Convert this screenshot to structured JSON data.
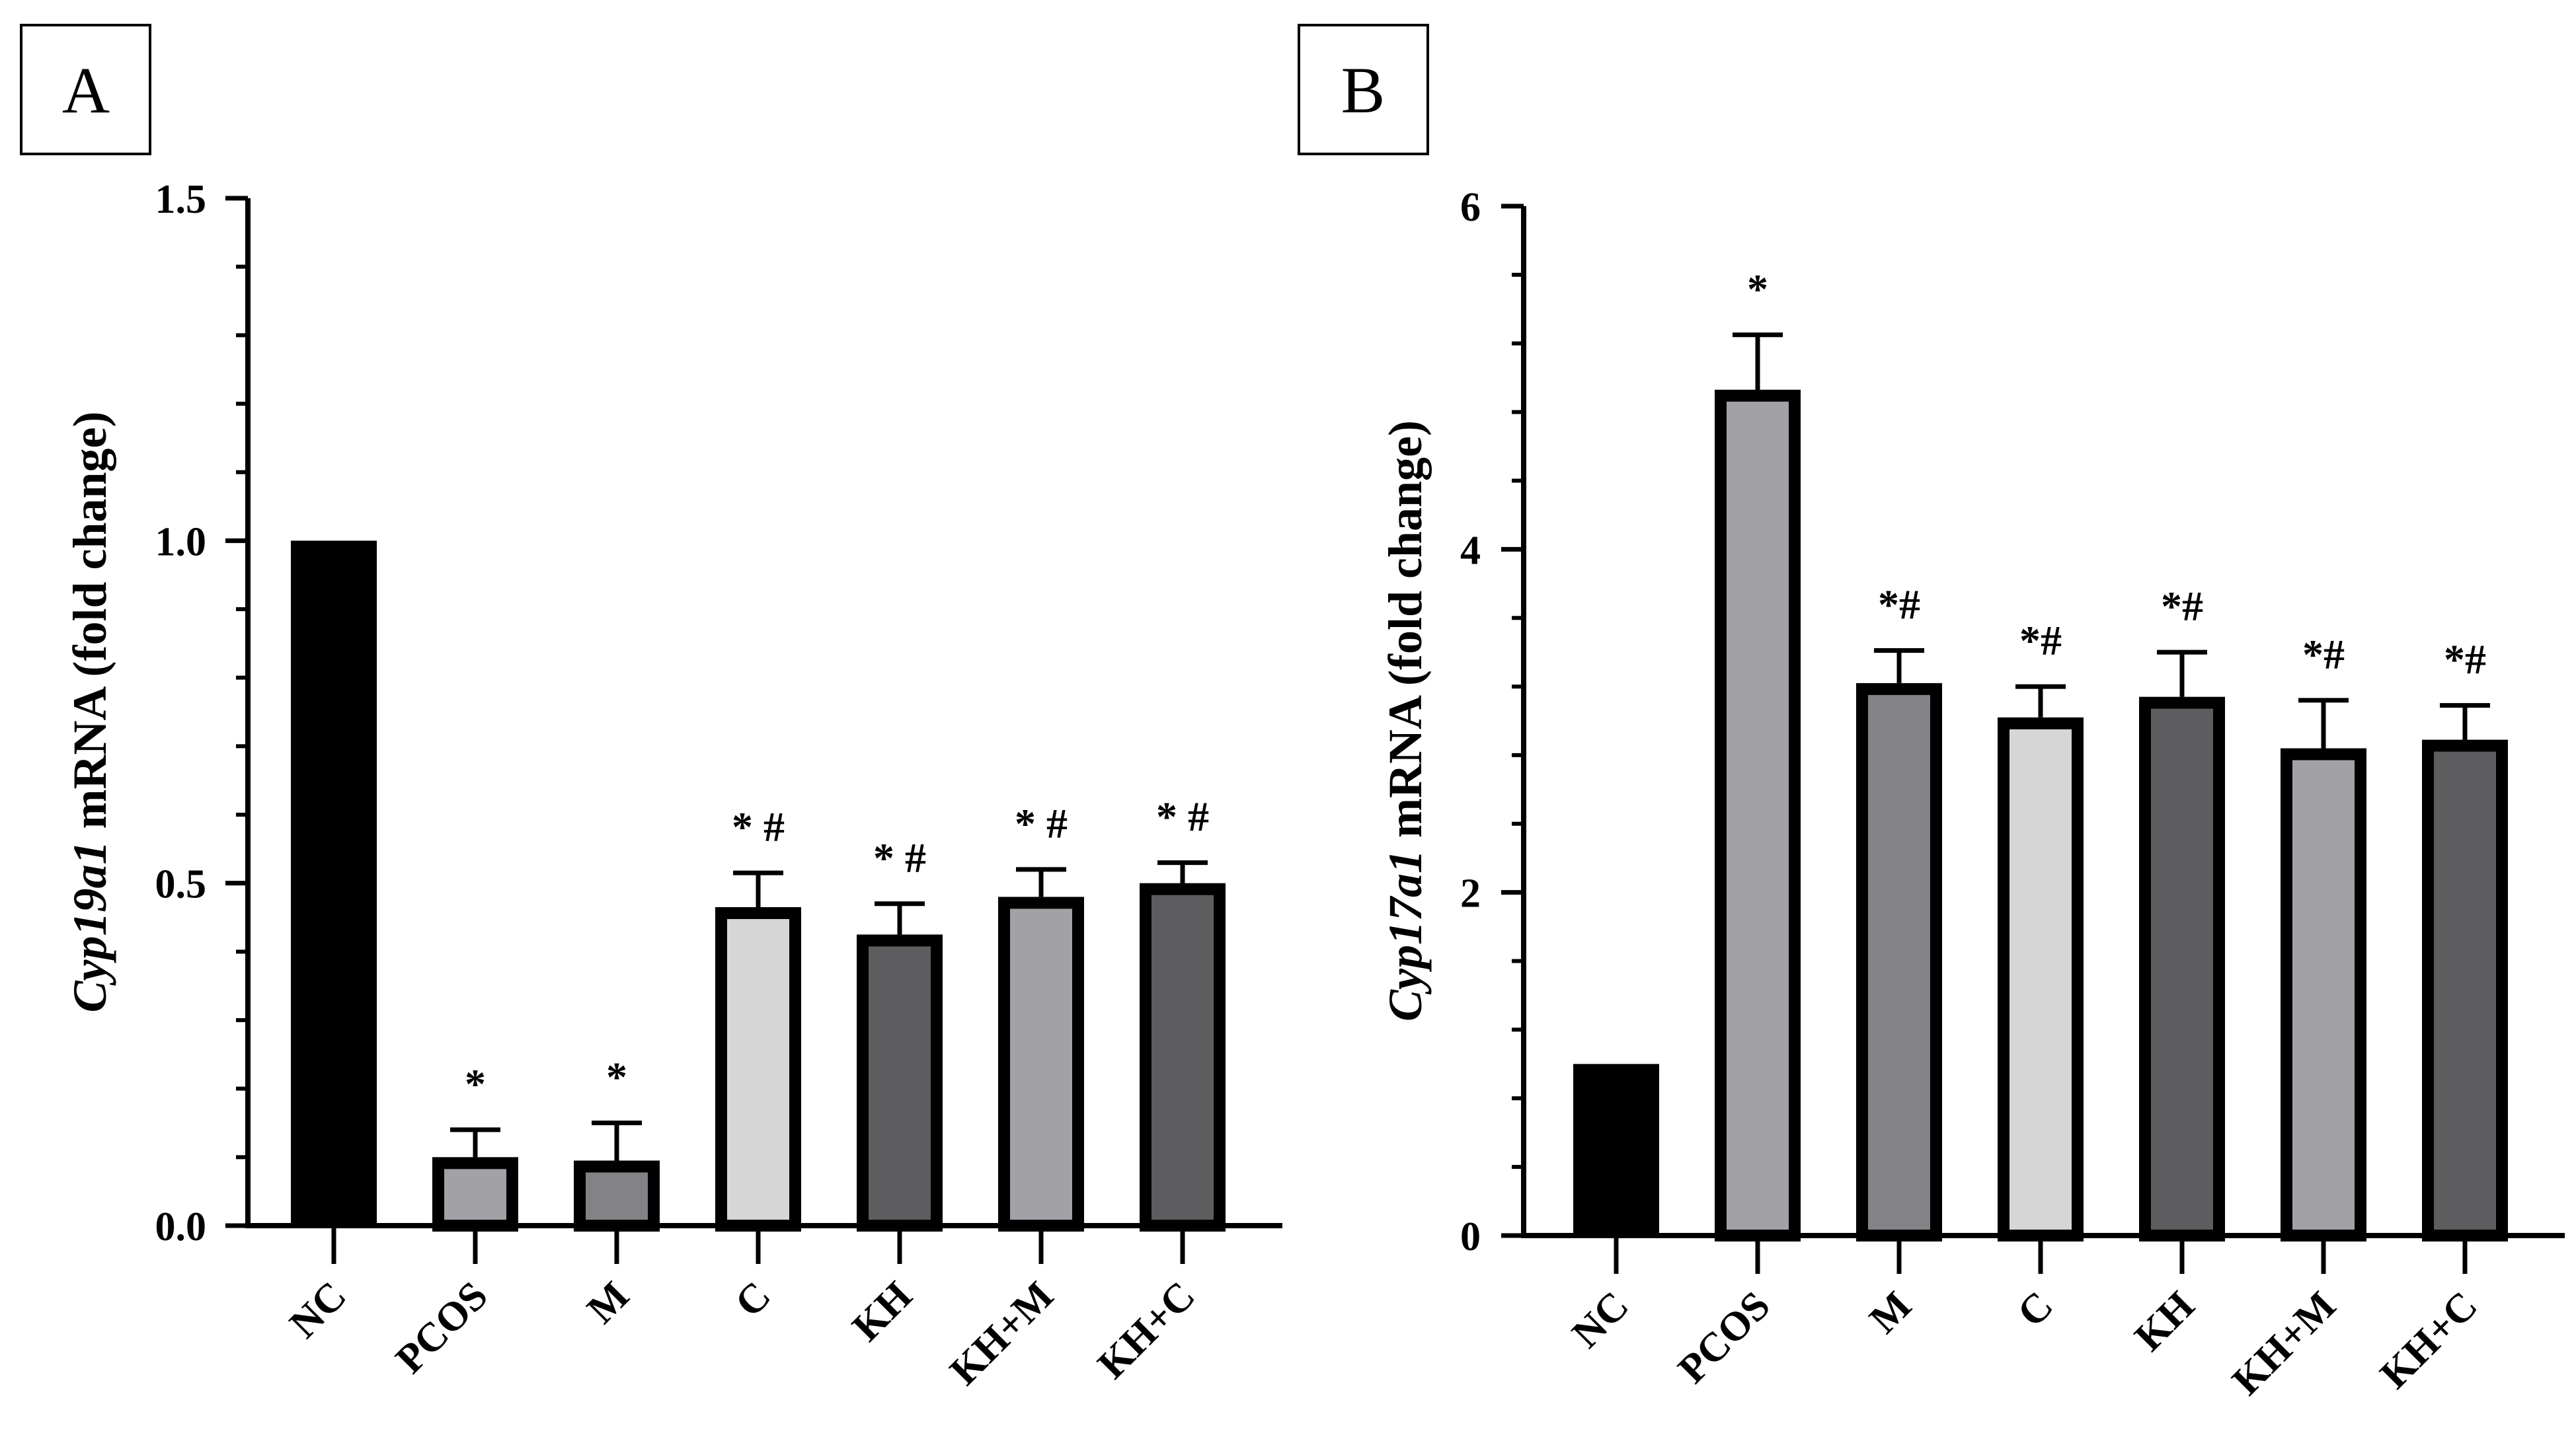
{
  "figure": {
    "panels": [
      "A",
      "B"
    ]
  },
  "chart_data": [
    {
      "panel": "A",
      "type": "bar",
      "title": "",
      "xlabel": "",
      "ylabel_italic": "Cyp19a1",
      "ylabel_rest": " mRNA (fold change)",
      "ylim": [
        0,
        1.5
      ],
      "yticks": [
        0,
        0.5,
        1.0,
        1.5
      ],
      "ytick_labels": [
        "0.0",
        "0.5",
        "1.0",
        "1.5"
      ],
      "categories": [
        "NC",
        "PCOS",
        "M",
        "C",
        "KH",
        "KH+M",
        "KH+C"
      ],
      "values": [
        1.0,
        0.1,
        0.095,
        0.465,
        0.425,
        0.48,
        0.5
      ],
      "errors": [
        0,
        0.04,
        0.055,
        0.05,
        0.045,
        0.04,
        0.03
      ],
      "significance": [
        "",
        "*",
        "*",
        "* #",
        "* #",
        "* #",
        "* #"
      ],
      "fill_colors": [
        "#000000",
        "#a2a1a6",
        "#838387",
        "#d6d6d6",
        "#5d5d5f",
        "#a2a1a6",
        "#5d5d5f"
      ]
    },
    {
      "panel": "B",
      "type": "bar",
      "title": "",
      "xlabel": "",
      "ylabel_italic": "Cyp17a1",
      "ylabel_rest": " mRNA (fold change)",
      "ylim": [
        0,
        6
      ],
      "yticks": [
        0,
        2,
        4,
        6
      ],
      "ytick_labels": [
        "0",
        "2",
        "4",
        "6"
      ],
      "categories": [
        "NC",
        "PCOS",
        "M",
        "C",
        "KH",
        "KH+M",
        "KH+C"
      ],
      "values": [
        1.0,
        4.93,
        3.22,
        3.02,
        3.14,
        2.84,
        2.89
      ],
      "errors": [
        0,
        0.32,
        0.19,
        0.18,
        0.26,
        0.28,
        0.2
      ],
      "significance": [
        "",
        "*",
        "*#",
        "*#",
        "*#",
        "*#",
        "*#"
      ],
      "fill_colors": [
        "#000000",
        "#a2a1a6",
        "#838387",
        "#d6d6d6",
        "#5d5d5f",
        "#a2a1a6",
        "#5d5d5f"
      ]
    }
  ]
}
